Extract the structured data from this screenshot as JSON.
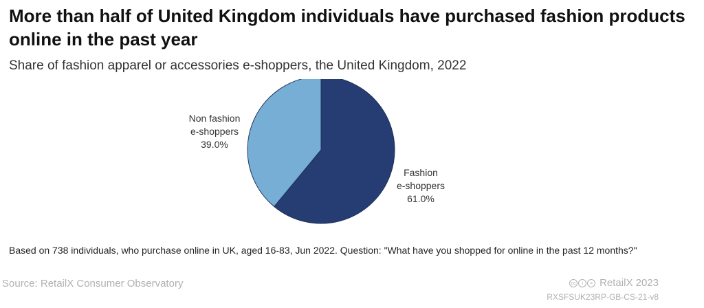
{
  "header": {
    "title": "More than half of United Kingdom individuals have purchased fashion products online in the past year",
    "subtitle": "Share of fashion apparel or accessories e-shoppers, the United Kingdom, 2022"
  },
  "chart_data": {
    "type": "pie",
    "slices": [
      {
        "label_lines": [
          "Fashion",
          "e-shoppers"
        ],
        "value": 61.0,
        "value_label": "61.0%",
        "color": "#253d73"
      },
      {
        "label_lines": [
          "Non fashion",
          "e-shoppers"
        ],
        "value": 39.0,
        "value_label": "39.0%",
        "color": "#76aed6"
      }
    ],
    "start": "12 o'clock, clockwise",
    "legend": "none"
  },
  "footer": {
    "note": "Based on 738 individuals, who purchase online in UK, aged 16-83, Jun 2022. Question: \"What have you shopped for online in the past 12 months?\"",
    "source": "Source: RetailX Consumer Observatory",
    "brand": "RetailX 2023",
    "code": "RXSFSUK23RP-GB-CS-21-v8",
    "license_icons": [
      "cc",
      "by",
      "nd"
    ]
  }
}
